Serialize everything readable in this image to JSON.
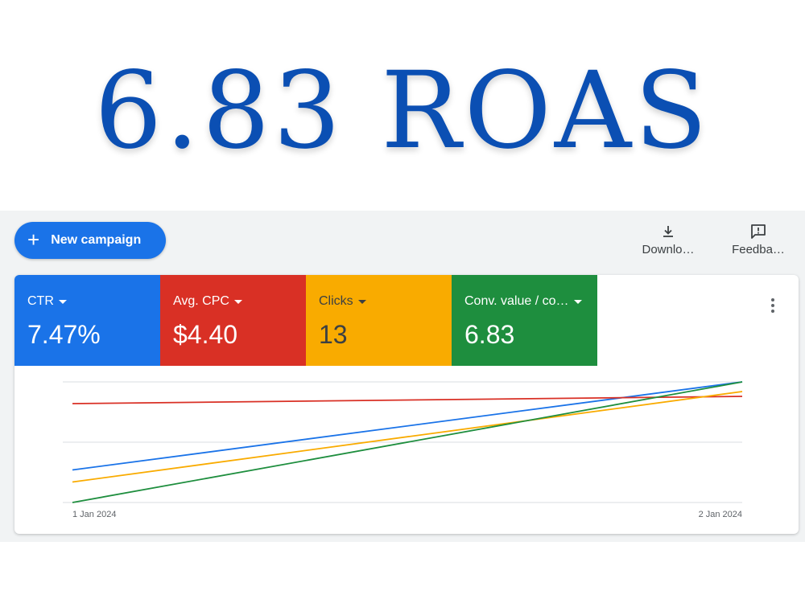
{
  "headline": "6.83 ROAS",
  "toolbar": {
    "new_campaign_label": "New campaign",
    "download_label": "Downlo…",
    "feedback_label": "Feedba…"
  },
  "metrics": [
    {
      "label": "CTR",
      "value": "7.47%",
      "color": "#1a73e8"
    },
    {
      "label": "Avg. CPC",
      "value": "$4.40",
      "color": "#d93025"
    },
    {
      "label": "Clicks",
      "value": "13",
      "color": "#f9ab00"
    },
    {
      "label": "Conv. value / co…",
      "value": "6.83",
      "color": "#1e8e3e"
    }
  ],
  "chart_data": {
    "type": "line",
    "x": [
      "1 Jan 2024",
      "2 Jan 2024"
    ],
    "series": [
      {
        "color": "#1a73e8",
        "values": [
          0.27,
          1.0
        ]
      },
      {
        "color": "#d93025",
        "values": [
          0.82,
          0.88
        ]
      },
      {
        "color": "#f9ab00",
        "values": [
          0.17,
          0.92
        ]
      },
      {
        "color": "#1e8e3e",
        "values": [
          0.0,
          1.0
        ]
      }
    ],
    "ylim": [
      0,
      1
    ],
    "grid": true
  }
}
